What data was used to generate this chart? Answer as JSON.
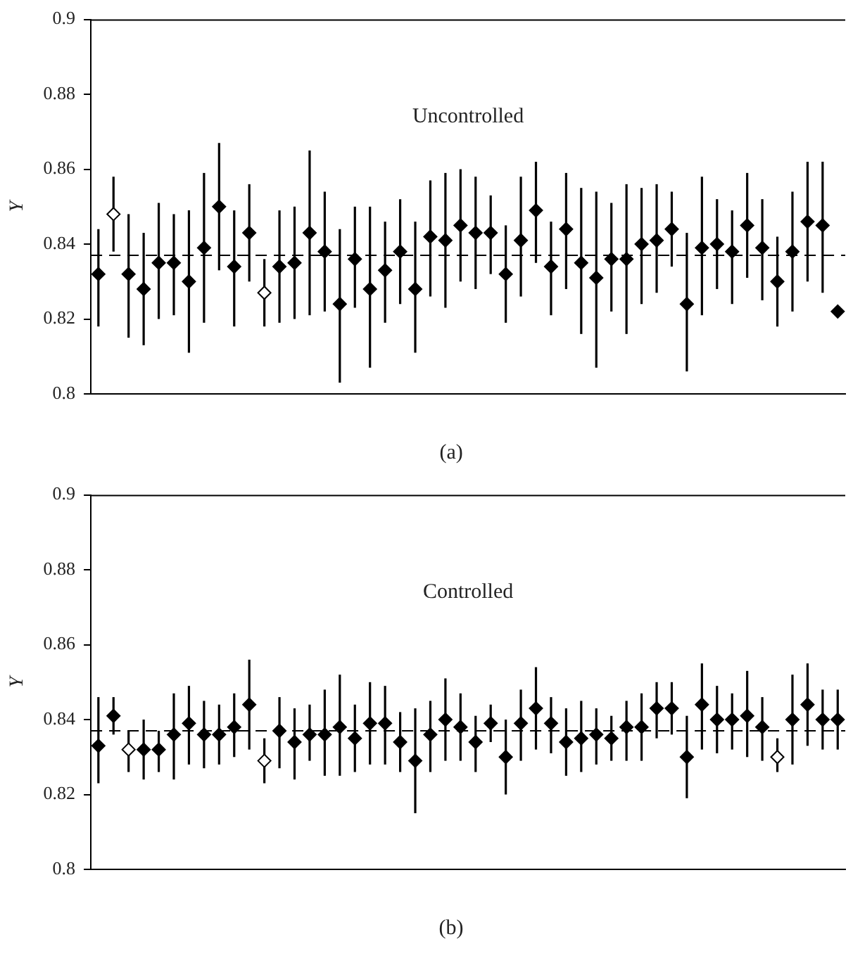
{
  "chart_data": [
    {
      "type": "scatter",
      "ylabel": "Y",
      "annotations": [
        "Uncontrolled",
        "(a)"
      ],
      "categories": [
        null,
        null,
        null,
        null,
        null,
        null,
        null,
        null,
        null,
        null,
        null,
        null,
        null,
        null,
        null,
        null,
        null,
        null,
        null,
        null,
        null,
        null,
        null,
        null,
        null,
        null,
        null,
        null,
        null,
        null,
        null,
        null,
        null,
        null,
        null,
        null,
        null,
        null,
        null,
        null,
        null,
        null,
        null,
        null,
        null,
        null,
        null,
        null,
        null,
        null
      ],
      "ylim": [
        0.8,
        0.9
      ],
      "yticks": [
        0.8,
        0.82,
        0.84,
        0.86,
        0.88,
        0.9
      ],
      "grid": false,
      "tick_labels": "y",
      "marker": "diamond",
      "legend": false,
      "ref_lines": [
        {
          "axis": "y",
          "value": 0.837,
          "line_style": "dashed",
          "color": "#000000"
        }
      ],
      "series": [
        {
          "color": "#000000",
          "colors": [
            "#000000",
            "#ffffff",
            "#000000",
            "#000000",
            "#000000",
            "#000000",
            "#000000",
            "#000000",
            "#000000",
            "#000000",
            "#000000",
            "#ffffff",
            "#000000",
            "#000000",
            "#000000",
            "#000000",
            "#000000",
            "#000000",
            "#000000",
            "#000000",
            "#000000",
            "#000000",
            "#000000",
            "#000000",
            "#000000",
            "#000000",
            "#000000",
            "#000000",
            "#000000",
            "#000000",
            "#000000",
            "#000000",
            "#000000",
            "#000000",
            "#000000",
            "#000000",
            "#000000",
            "#000000",
            "#000000",
            "#000000",
            "#000000",
            "#000000",
            "#000000",
            "#000000",
            "#000000",
            "#000000",
            "#000000",
            "#000000",
            "#000000",
            "#000000"
          ],
          "values": [
            0.832,
            0.848,
            0.832,
            0.828,
            0.835,
            0.835,
            0.83,
            0.839,
            0.85,
            0.834,
            0.843,
            0.827,
            0.834,
            0.835,
            0.843,
            0.838,
            0.824,
            0.836,
            0.828,
            0.833,
            0.838,
            0.828,
            0.842,
            0.841,
            0.845,
            0.843,
            0.843,
            0.832,
            0.841,
            0.849,
            0.834,
            0.844,
            0.835,
            0.831,
            0.836,
            0.836,
            0.84,
            0.841,
            0.844,
            0.824,
            0.839,
            0.84,
            0.838,
            0.845,
            0.839,
            0.83,
            0.838,
            0.846,
            0.845,
            0.822
          ],
          "errors": [
            [
              0.818,
              0.844
            ],
            [
              0.838,
              0.858
            ],
            [
              0.815,
              0.848
            ],
            [
              0.813,
              0.843
            ],
            [
              0.82,
              0.851
            ],
            [
              0.821,
              0.848
            ],
            [
              0.811,
              0.849
            ],
            [
              0.819,
              0.859
            ],
            [
              0.833,
              0.867
            ],
            [
              0.818,
              0.849
            ],
            [
              0.83,
              0.856
            ],
            [
              0.818,
              0.836
            ],
            [
              0.819,
              0.849
            ],
            [
              0.82,
              0.85
            ],
            [
              0.821,
              0.865
            ],
            [
              0.822,
              0.854
            ],
            [
              0.803,
              0.844
            ],
            [
              0.823,
              0.85
            ],
            [
              0.807,
              0.85
            ],
            [
              0.819,
              0.846
            ],
            [
              0.824,
              0.852
            ],
            [
              0.811,
              0.846
            ],
            [
              0.826,
              0.857
            ],
            [
              0.823,
              0.859
            ],
            [
              0.83,
              0.86
            ],
            [
              0.828,
              0.858
            ],
            [
              0.832,
              0.853
            ],
            [
              0.819,
              0.845
            ],
            [
              0.826,
              0.858
            ],
            [
              0.835,
              0.862
            ],
            [
              0.821,
              0.846
            ],
            [
              0.828,
              0.859
            ],
            [
              0.816,
              0.855
            ],
            [
              0.807,
              0.854
            ],
            [
              0.822,
              0.851
            ],
            [
              0.816,
              0.856
            ],
            [
              0.824,
              0.855
            ],
            [
              0.827,
              0.856
            ],
            [
              0.834,
              0.854
            ],
            [
              0.806,
              0.843
            ],
            [
              0.821,
              0.858
            ],
            [
              0.828,
              0.852
            ],
            [
              0.824,
              0.849
            ],
            [
              0.831,
              0.859
            ],
            [
              0.825,
              0.852
            ],
            [
              0.818,
              0.842
            ],
            [
              0.822,
              0.854
            ],
            [
              0.83,
              0.862
            ],
            [
              0.827,
              0.862
            ],
            null
          ]
        }
      ]
    },
    {
      "type": "scatter",
      "ylabel": "Y",
      "annotations": [
        "Controlled",
        "(b)"
      ],
      "categories": [
        null,
        null,
        null,
        null,
        null,
        null,
        null,
        null,
        null,
        null,
        null,
        null,
        null,
        null,
        null,
        null,
        null,
        null,
        null,
        null,
        null,
        null,
        null,
        null,
        null,
        null,
        null,
        null,
        null,
        null,
        null,
        null,
        null,
        null,
        null,
        null,
        null,
        null,
        null,
        null,
        null,
        null,
        null,
        null,
        null,
        null,
        null,
        null,
        null,
        null
      ],
      "ylim": [
        0.8,
        0.9
      ],
      "yticks": [
        0.8,
        0.82,
        0.84,
        0.86,
        0.88,
        0.9
      ],
      "grid": false,
      "tick_labels": "y",
      "marker": "diamond",
      "legend": false,
      "ref_lines": [
        {
          "axis": "y",
          "value": 0.837,
          "line_style": "dashed",
          "color": "#000000"
        }
      ],
      "series": [
        {
          "color": "#000000",
          "colors": [
            "#000000",
            "#000000",
            "#ffffff",
            "#000000",
            "#000000",
            "#000000",
            "#000000",
            "#000000",
            "#000000",
            "#000000",
            "#000000",
            "#ffffff",
            "#000000",
            "#000000",
            "#000000",
            "#000000",
            "#000000",
            "#000000",
            "#000000",
            "#000000",
            "#000000",
            "#000000",
            "#000000",
            "#000000",
            "#000000",
            "#000000",
            "#000000",
            "#000000",
            "#000000",
            "#000000",
            "#000000",
            "#000000",
            "#000000",
            "#000000",
            "#000000",
            "#000000",
            "#000000",
            "#000000",
            "#000000",
            "#000000",
            "#000000",
            "#000000",
            "#000000",
            "#000000",
            "#000000",
            "#ffffff",
            "#000000",
            "#000000",
            "#000000",
            "#000000"
          ],
          "values": [
            0.833,
            0.841,
            0.832,
            0.832,
            0.832,
            0.836,
            0.839,
            0.836,
            0.836,
            0.838,
            0.844,
            0.829,
            0.837,
            0.834,
            0.836,
            0.836,
            0.838,
            0.835,
            0.839,
            0.839,
            0.834,
            0.829,
            0.836,
            0.84,
            0.838,
            0.834,
            0.839,
            0.83,
            0.839,
            0.843,
            0.839,
            0.834,
            0.835,
            0.836,
            0.835,
            0.838,
            0.838,
            0.843,
            0.843,
            0.83,
            0.844,
            0.84,
            0.84,
            0.841,
            0.838,
            0.83,
            0.84,
            0.844,
            0.84,
            0.84
          ],
          "errors": [
            [
              0.823,
              0.846
            ],
            [
              0.836,
              0.846
            ],
            [
              0.826,
              0.837
            ],
            [
              0.824,
              0.84
            ],
            [
              0.826,
              0.837
            ],
            [
              0.824,
              0.847
            ],
            [
              0.828,
              0.849
            ],
            [
              0.827,
              0.845
            ],
            [
              0.828,
              0.844
            ],
            [
              0.83,
              0.847
            ],
            [
              0.832,
              0.856
            ],
            [
              0.823,
              0.835
            ],
            [
              0.827,
              0.846
            ],
            [
              0.824,
              0.843
            ],
            [
              0.829,
              0.844
            ],
            [
              0.825,
              0.848
            ],
            [
              0.825,
              0.852
            ],
            [
              0.826,
              0.844
            ],
            [
              0.828,
              0.85
            ],
            [
              0.828,
              0.849
            ],
            [
              0.826,
              0.842
            ],
            [
              0.815,
              0.843
            ],
            [
              0.826,
              0.845
            ],
            [
              0.829,
              0.851
            ],
            [
              0.829,
              0.847
            ],
            [
              0.826,
              0.841
            ],
            [
              0.834,
              0.844
            ],
            [
              0.82,
              0.84
            ],
            [
              0.829,
              0.848
            ],
            [
              0.832,
              0.854
            ],
            [
              0.831,
              0.846
            ],
            [
              0.825,
              0.843
            ],
            [
              0.826,
              0.845
            ],
            [
              0.828,
              0.843
            ],
            [
              0.829,
              0.841
            ],
            [
              0.829,
              0.845
            ],
            [
              0.829,
              0.847
            ],
            [
              0.835,
              0.85
            ],
            [
              0.836,
              0.85
            ],
            [
              0.819,
              0.841
            ],
            [
              0.832,
              0.855
            ],
            [
              0.831,
              0.849
            ],
            [
              0.832,
              0.847
            ],
            [
              0.83,
              0.853
            ],
            [
              0.829,
              0.846
            ],
            [
              0.826,
              0.835
            ],
            [
              0.828,
              0.852
            ],
            [
              0.833,
              0.855
            ],
            [
              0.832,
              0.848
            ],
            [
              0.832,
              0.848
            ]
          ]
        }
      ]
    }
  ]
}
